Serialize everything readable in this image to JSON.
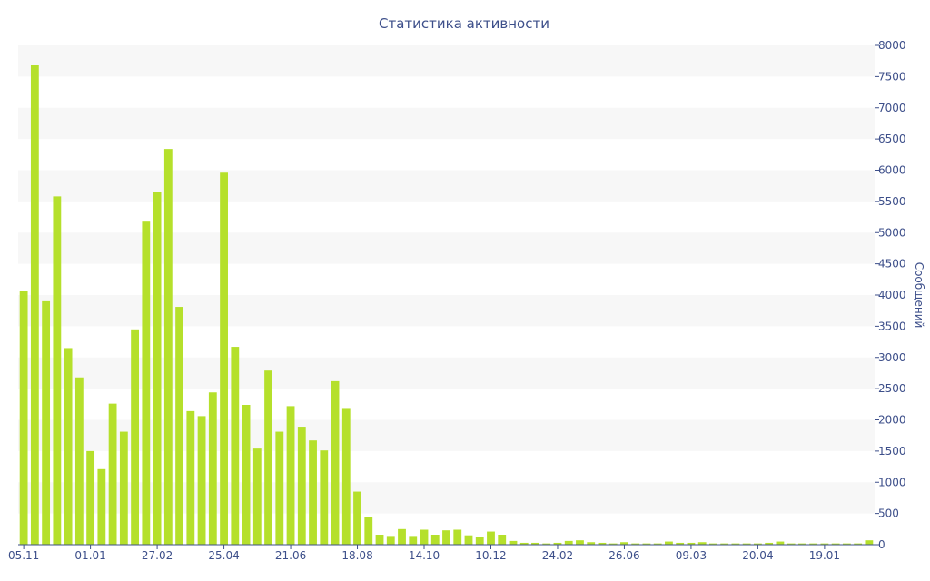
{
  "chart_data": {
    "type": "bar",
    "title": "Статистика активности",
    "ylabel": "Сообщений",
    "xlabel": "",
    "ylim": [
      0,
      8000
    ],
    "y_ticks": [
      0,
      500,
      1000,
      1500,
      2000,
      2500,
      3000,
      3500,
      4000,
      4500,
      5000,
      5500,
      6000,
      6500,
      7000,
      7500,
      8000
    ],
    "x_tick_labels": [
      {
        "index": 0,
        "label": "05.11"
      },
      {
        "index": 6,
        "label": "01.01"
      },
      {
        "index": 12,
        "label": "27.02"
      },
      {
        "index": 18,
        "label": "25.04"
      },
      {
        "index": 24,
        "label": "21.06"
      },
      {
        "index": 30,
        "label": "18.08"
      },
      {
        "index": 36,
        "label": "14.10"
      },
      {
        "index": 42,
        "label": "10.12"
      },
      {
        "index": 48,
        "label": "24.02"
      },
      {
        "index": 54,
        "label": "26.06"
      },
      {
        "index": 60,
        "label": "09.03"
      },
      {
        "index": 66,
        "label": "20.04"
      },
      {
        "index": 72,
        "label": "19.01"
      }
    ],
    "grid": "horizontal alternating bands",
    "y_axis_position": "right",
    "bar_color": "#b5e02b",
    "values": [
      4060,
      7680,
      3900,
      5580,
      3150,
      2680,
      1500,
      1210,
      2260,
      1810,
      3450,
      5190,
      5650,
      6340,
      3810,
      2140,
      2060,
      2440,
      5960,
      3170,
      2240,
      1540,
      2790,
      1810,
      2220,
      1890,
      1670,
      1510,
      2620,
      2190,
      850,
      440,
      160,
      140,
      250,
      140,
      240,
      160,
      230,
      240,
      150,
      120,
      210,
      160,
      60,
      30,
      30,
      20,
      30,
      60,
      70,
      40,
      30,
      20,
      40,
      20,
      20,
      20,
      50,
      30,
      30,
      40,
      20,
      20,
      20,
      20,
      20,
      30,
      50,
      20,
      20,
      20,
      20,
      20,
      20,
      20,
      70
    ]
  },
  "colors": {
    "text": "#3d4f8a",
    "band": "#f7f7f7",
    "axis": "#3d4f8a",
    "bar": "#b5e02b"
  }
}
